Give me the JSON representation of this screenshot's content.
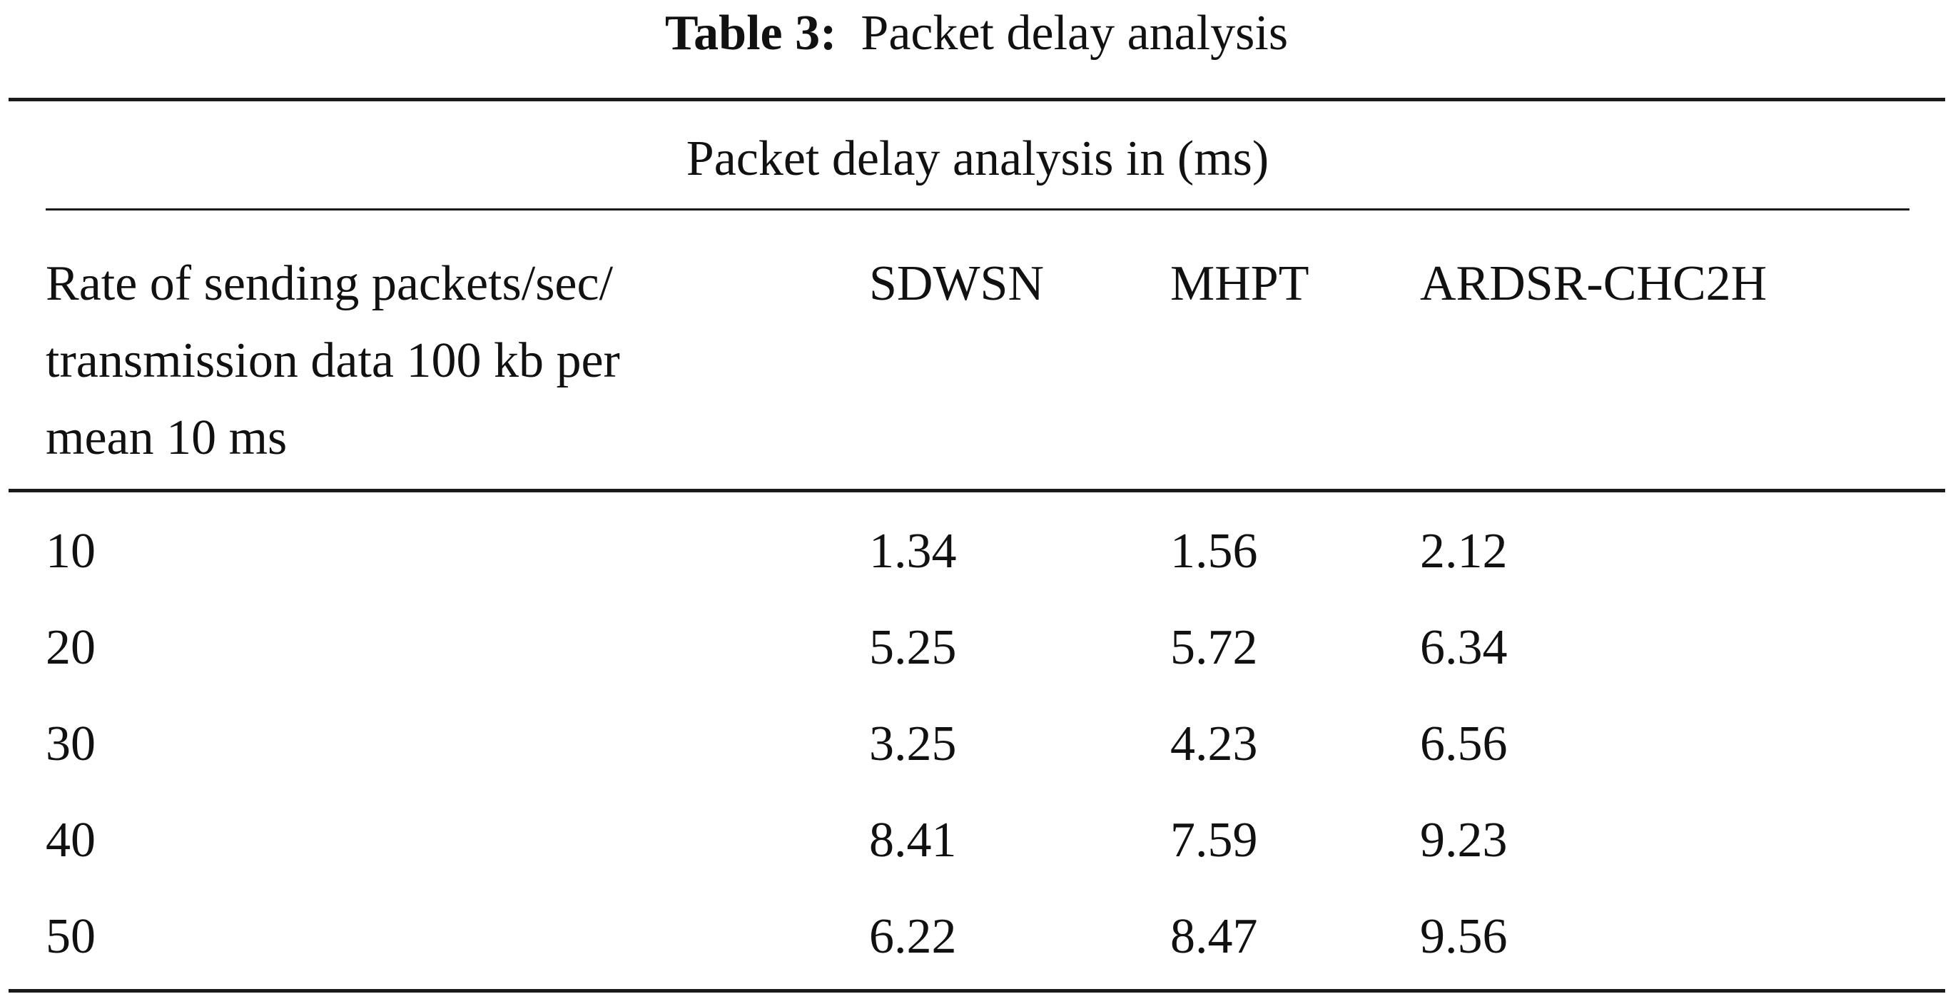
{
  "caption": {
    "label": "Table 3:",
    "text": "Packet delay analysis"
  },
  "table": {
    "spanning_header": "Packet delay analysis in (ms)",
    "row_header_lines": [
      "Rate of sending packets/sec/",
      "transmission data 100 kb per",
      "mean 10 ms"
    ],
    "columns": [
      "SDWSN",
      "MHPT",
      "ARDSR-CHC2H"
    ],
    "rows": [
      {
        "rate": "10",
        "values": [
          "1.34",
          "1.56",
          "2.12"
        ]
      },
      {
        "rate": "20",
        "values": [
          "5.25",
          "5.72",
          "6.34"
        ]
      },
      {
        "rate": "30",
        "values": [
          "3.25",
          "4.23",
          "6.56"
        ]
      },
      {
        "rate": "40",
        "values": [
          "8.41",
          "7.59",
          "9.23"
        ]
      },
      {
        "rate": "50",
        "values": [
          "6.22",
          "8.47",
          "9.56"
        ]
      }
    ]
  }
}
